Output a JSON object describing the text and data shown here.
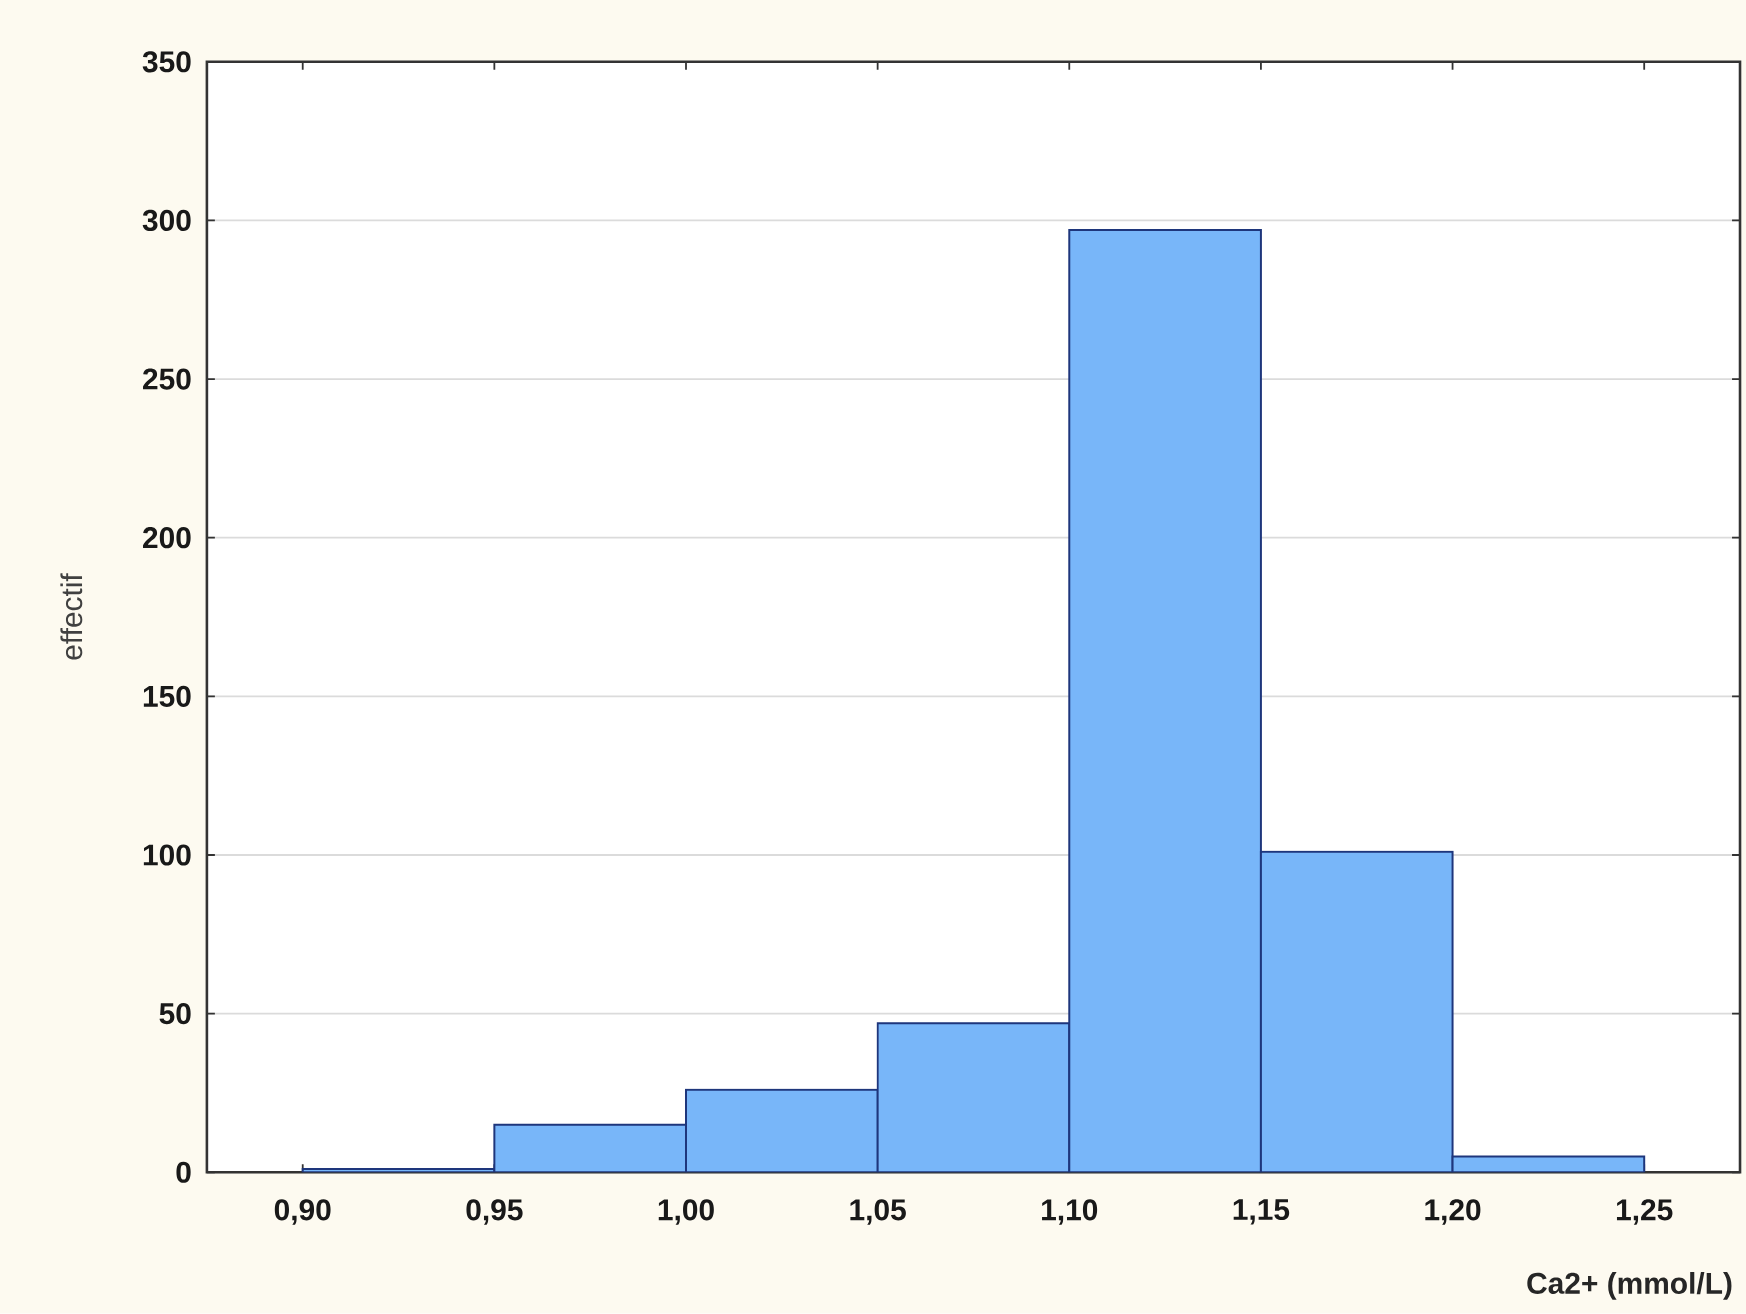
{
  "chart_data": {
    "type": "histogram",
    "xlabel": "**Ca2+ (mmol/L)**",
    "ylabel": "effectif",
    "bins": [
      0.9,
      0.95,
      1.0,
      1.05,
      1.1,
      1.15,
      1.2,
      1.25
    ],
    "values": [
      1,
      15,
      26,
      47,
      297,
      101,
      5
    ],
    "color": "#78b6f9",
    "xlim": [
      0.875,
      1.275
    ],
    "ylim": [
      0,
      350
    ],
    "xticks": [
      {
        "value": 0.9,
        "label": "0,90"
      },
      {
        "value": 0.95,
        "label": "0,95"
      },
      {
        "value": 1.0,
        "label": "1,00"
      },
      {
        "value": 1.05,
        "label": "1,05"
      },
      {
        "value": 1.1,
        "label": "1,10"
      },
      {
        "value": 1.15,
        "label": "1,15"
      },
      {
        "value": 1.2,
        "label": "1,20"
      },
      {
        "value": 1.25,
        "label": "1,25"
      }
    ],
    "yticks": [
      0,
      50,
      100,
      150,
      200,
      250,
      300,
      350
    ],
    "grid": "y"
  }
}
